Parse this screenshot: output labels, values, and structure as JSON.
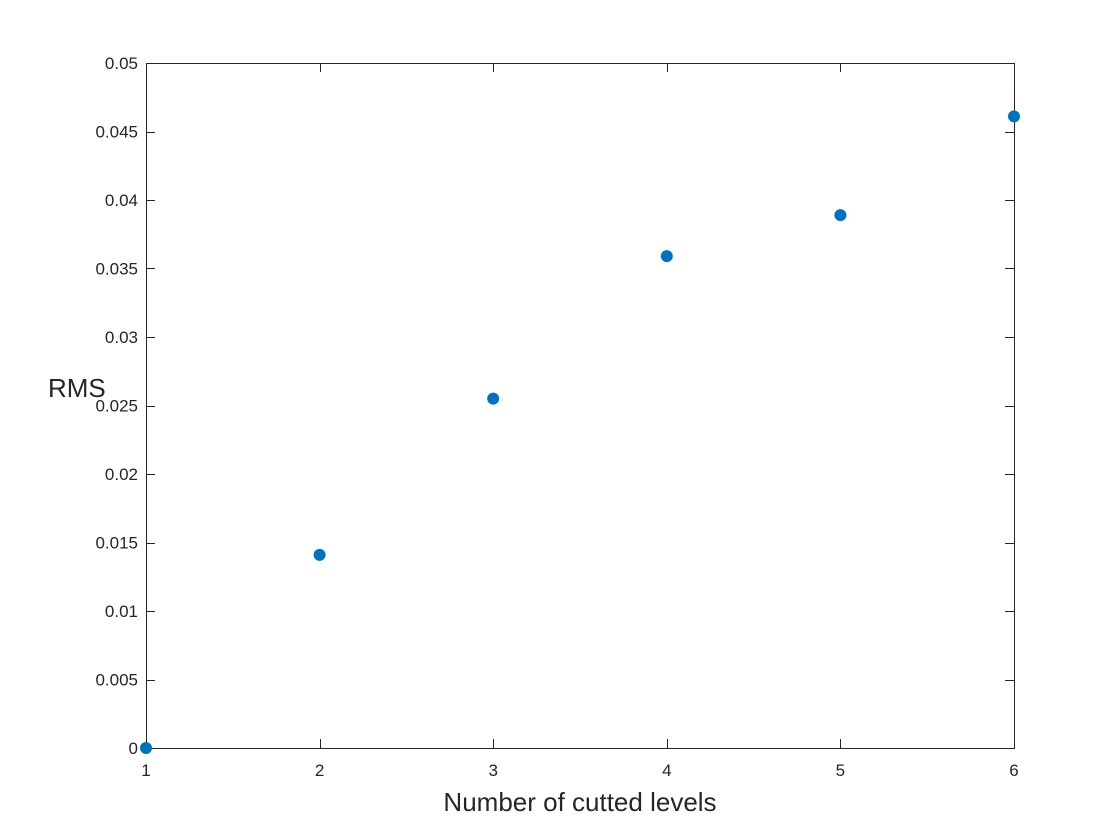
{
  "chart_data": {
    "type": "scatter",
    "title": "",
    "xlabel": "Number of cutted levels",
    "ylabel": "RMS",
    "xlim": [
      1,
      6
    ],
    "ylim": [
      0,
      0.05
    ],
    "grid": false,
    "legend": "none",
    "marker_color": "#0072BD",
    "axis_color": "#262626",
    "x_ticks": [
      "1",
      "2",
      "3",
      "4",
      "5",
      "6"
    ],
    "y_ticks": [
      "0",
      "0.005",
      "0.01",
      "0.015",
      "0.02",
      "0.025",
      "0.03",
      "0.035",
      "0.04",
      "0.045",
      "0.05"
    ],
    "series": [
      {
        "x": [
          1,
          2,
          3,
          4,
          5,
          6
        ],
        "y": [
          0.0,
          0.0141,
          0.0255,
          0.0359,
          0.0389,
          0.0461
        ]
      }
    ]
  }
}
